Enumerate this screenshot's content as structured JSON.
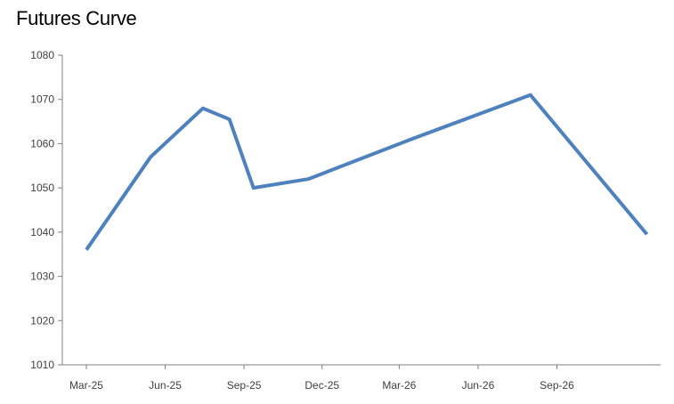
{
  "chart_data": {
    "type": "line",
    "title": "Futures Curve",
    "xlabel": "",
    "ylabel": "",
    "ylim": [
      1010,
      1080
    ],
    "y_ticks": [
      "1010",
      "1020",
      "1030",
      "1040",
      "1050",
      "1060",
      "1070",
      "1080"
    ],
    "x_ticks": [
      "Mar-25",
      "Jun-25",
      "Sep-25",
      "Dec-25",
      "Mar-26",
      "Jun-26",
      "Sep-26"
    ],
    "x_range": [
      "2025-02-01",
      "2026-12-31"
    ],
    "grid": false,
    "legend": "none",
    "series": [
      {
        "color": "#4f81bd",
        "points": [
          {
            "x": "2025-03-01",
            "y": 1036
          },
          {
            "x": "2025-05-15",
            "y": 1057
          },
          {
            "x": "2025-07-15",
            "y": 1068
          },
          {
            "x": "2025-08-15",
            "y": 1065.5
          },
          {
            "x": "2025-09-12",
            "y": 1050
          },
          {
            "x": "2025-11-15",
            "y": 1052
          },
          {
            "x": "2026-03-15",
            "y": 1061
          },
          {
            "x": "2026-08-01",
            "y": 1071
          },
          {
            "x": "2026-12-15",
            "y": 1039.5
          }
        ]
      }
    ]
  }
}
